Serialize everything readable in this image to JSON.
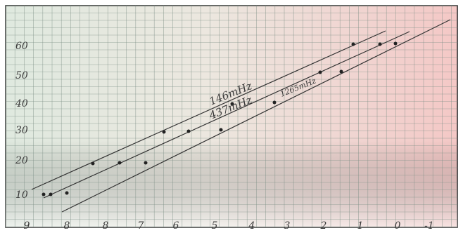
{
  "y_labels": [
    "60",
    "50",
    "40",
    "30",
    "20",
    "10"
  ],
  "x_labels": [
    "9",
    "8",
    "8",
    "7",
    "6",
    "5",
    "4",
    "3",
    "2",
    "1",
    "0",
    "-1"
  ],
  "annotations": [
    "146mHz",
    "437mHz",
    "1265mHz"
  ]
}
